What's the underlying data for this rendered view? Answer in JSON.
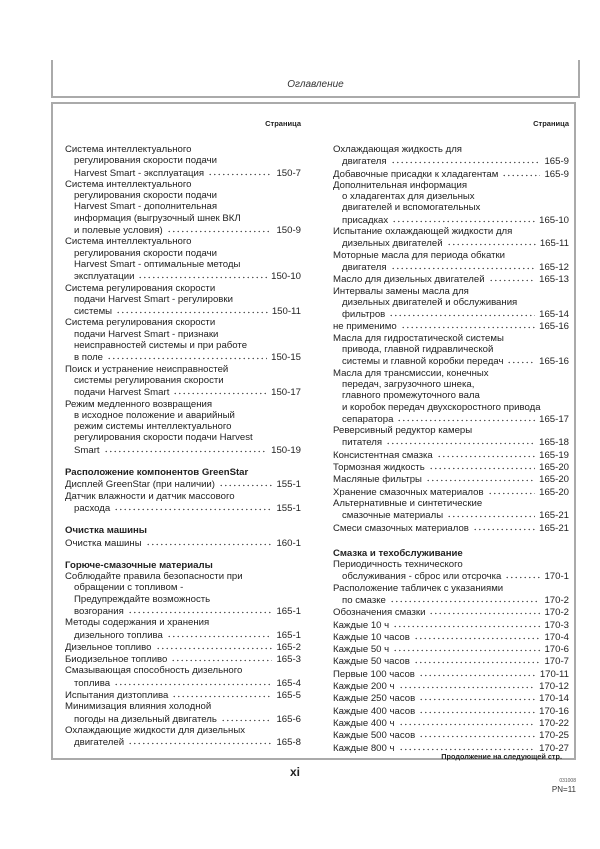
{
  "header": {
    "title": "Оглавление"
  },
  "columns": [
    {
      "page_label": "Страница",
      "items": [
        {
          "lines": [
            "Система интеллектуального",
            "регулирования скорости подачи",
            "Harvest Smart - эксплуатация"
          ],
          "page": "150-7"
        },
        {
          "lines": [
            "Система интеллектуального",
            "регулирования скорости подачи",
            "Harvest Smart - дополнительная",
            "информация (выгрузочный шнек ВКЛ",
            "и полевые условия)"
          ],
          "page": "150-9"
        },
        {
          "lines": [
            "Система интеллектуального",
            "регулирования скорости подачи",
            "Harvest Smart - оптимальные методы",
            "эксплуатации"
          ],
          "page": "150-10"
        },
        {
          "lines": [
            "Система регулирования скорости",
            "подачи Harvest Smart - регулировки",
            "системы"
          ],
          "page": "150-11"
        },
        {
          "lines": [
            "Система регулирования скорости",
            "подачи Harvest Smart - признаки",
            "неисправностей системы и при работе",
            "в поле"
          ],
          "page": "150-15"
        },
        {
          "lines": [
            "Поиск и устранение неисправностей",
            "системы регулирования скорости",
            "подачи Harvest Smart"
          ],
          "page": "150-17"
        },
        {
          "lines": [
            "Режим медленного возвращения",
            "в исходное положение и аварийный",
            "режим системы интеллектуального",
            "регулирования скорости подачи Harvest",
            "Smart"
          ],
          "page": "150-19"
        },
        {
          "heading": "Расположение компонентов GreenStar"
        },
        {
          "lines": [
            "Дисплей GreenStar (при наличии)"
          ],
          "page": "155-1"
        },
        {
          "lines": [
            "Датчик влажности и датчик массового",
            "расхода"
          ],
          "page": "155-1"
        },
        {
          "heading": "Очистка машины"
        },
        {
          "lines": [
            "Очистка машины"
          ],
          "page": "160-1"
        },
        {
          "heading": "Горюче-смазочные материалы"
        },
        {
          "lines": [
            "Соблюдайте правила безопасности при",
            "обращении с топливом -",
            "Предупреждайте возможность",
            "возгорания"
          ],
          "page": "165-1"
        },
        {
          "lines": [
            "Методы содержания и хранения",
            "дизельного топлива"
          ],
          "page": "165-1"
        },
        {
          "lines": [
            "Дизельное топливо"
          ],
          "page": "165-2"
        },
        {
          "lines": [
            "Биодизельное топливо"
          ],
          "page": "165-3"
        },
        {
          "lines": [
            "Смазывающая способность дизельного",
            "топлива"
          ],
          "page": "165-4"
        },
        {
          "lines": [
            "Испытания дизтоплива"
          ],
          "page": "165-5"
        },
        {
          "lines": [
            "Минимизация влияния холодной",
            "погоды на дизельный двигатель"
          ],
          "page": "165-6"
        },
        {
          "lines": [
            "Охлаждающие жидкости для дизельных",
            "двигателей"
          ],
          "page": "165-8"
        }
      ]
    },
    {
      "page_label": "Страница",
      "items": [
        {
          "lines": [
            "Охлаждающая жидкость для",
            "двигателя"
          ],
          "page": "165-9"
        },
        {
          "lines": [
            "Добавочные присадки к хладагентам"
          ],
          "page": "165-9"
        },
        {
          "lines": [
            "Дополнительная информация",
            "о хладагентах для дизельных",
            "двигателей и вспомогательных",
            "присадках"
          ],
          "page": "165-10"
        },
        {
          "lines": [
            "Испытание охлаждающей жидкости для",
            "дизельных двигателей"
          ],
          "page": "165-11"
        },
        {
          "lines": [
            "Моторные масла для периода обкатки",
            "двигателя"
          ],
          "page": "165-12"
        },
        {
          "lines": [
            "Масло для дизельных двигателей"
          ],
          "page": "165-13"
        },
        {
          "lines": [
            "Интервалы замены масла для",
            "дизельных двигателей и обслуживания",
            "фильтров"
          ],
          "page": "165-14"
        },
        {
          "lines": [
            "не применимо"
          ],
          "page": "165-16"
        },
        {
          "lines": [
            "Масла для гидростатической системы",
            "привода, главной гидравлической",
            "системы и главной коробки передач"
          ],
          "page": "165-16"
        },
        {
          "lines": [
            "Масла для трансмиссии, конечных",
            "передач, загрузочного шнека,",
            "главного промежуточного вала",
            "и коробок передач двухскоростного привода",
            "сепаратора"
          ],
          "page": "165-17"
        },
        {
          "lines": [
            "Реверсивный редуктор камеры",
            "питателя"
          ],
          "page": "165-18"
        },
        {
          "lines": [
            "Консистентная смазка"
          ],
          "page": "165-19"
        },
        {
          "lines": [
            "Тормозная жидкость"
          ],
          "page": "165-20"
        },
        {
          "lines": [
            "Масляные фильтры"
          ],
          "page": "165-20"
        },
        {
          "lines": [
            "Хранение смазочных материалов"
          ],
          "page": "165-20"
        },
        {
          "lines": [
            "Альтернативные и синтетические",
            "смазочные материалы"
          ],
          "page": "165-21"
        },
        {
          "lines": [
            "Смеси смазочных материалов"
          ],
          "page": "165-21"
        },
        {
          "heading": "Смазка и техобслуживание",
          "big": true
        },
        {
          "lines": [
            "Периодичность технического",
            "обслуживания - сброс или отсрочка"
          ],
          "page": "170-1"
        },
        {
          "lines": [
            "Расположение табличек с указаниями",
            "по смазке"
          ],
          "page": "170-2"
        },
        {
          "lines": [
            "Обозначения смазки"
          ],
          "page": "170-2"
        },
        {
          "lines": [
            "Каждые 10 ч"
          ],
          "page": "170-3"
        },
        {
          "lines": [
            "Каждые 10 часов"
          ],
          "page": "170-4"
        },
        {
          "lines": [
            "Каждые 50 ч"
          ],
          "page": "170-6"
        },
        {
          "lines": [
            "Каждые 50 часов"
          ],
          "page": "170-7"
        },
        {
          "lines": [
            "Первые 100 часов"
          ],
          "page": "170-11"
        },
        {
          "lines": [
            "Каждые 200 ч"
          ],
          "page": "170-12"
        },
        {
          "lines": [
            "Каждые 250 часов"
          ],
          "page": "170-14"
        },
        {
          "lines": [
            "Каждые 400 часов"
          ],
          "page": "170-16"
        },
        {
          "lines": [
            "Каждые 400 ч"
          ],
          "page": "170-22"
        },
        {
          "lines": [
            "Каждые 500 часов"
          ],
          "page": "170-25"
        },
        {
          "lines": [
            "Каждые 800 ч"
          ],
          "page": "170-27"
        }
      ]
    }
  ],
  "footer": {
    "continued": "Продолжение на следующей стр.",
    "page_number": "xi",
    "code": "031008",
    "pn": "PN=11"
  }
}
